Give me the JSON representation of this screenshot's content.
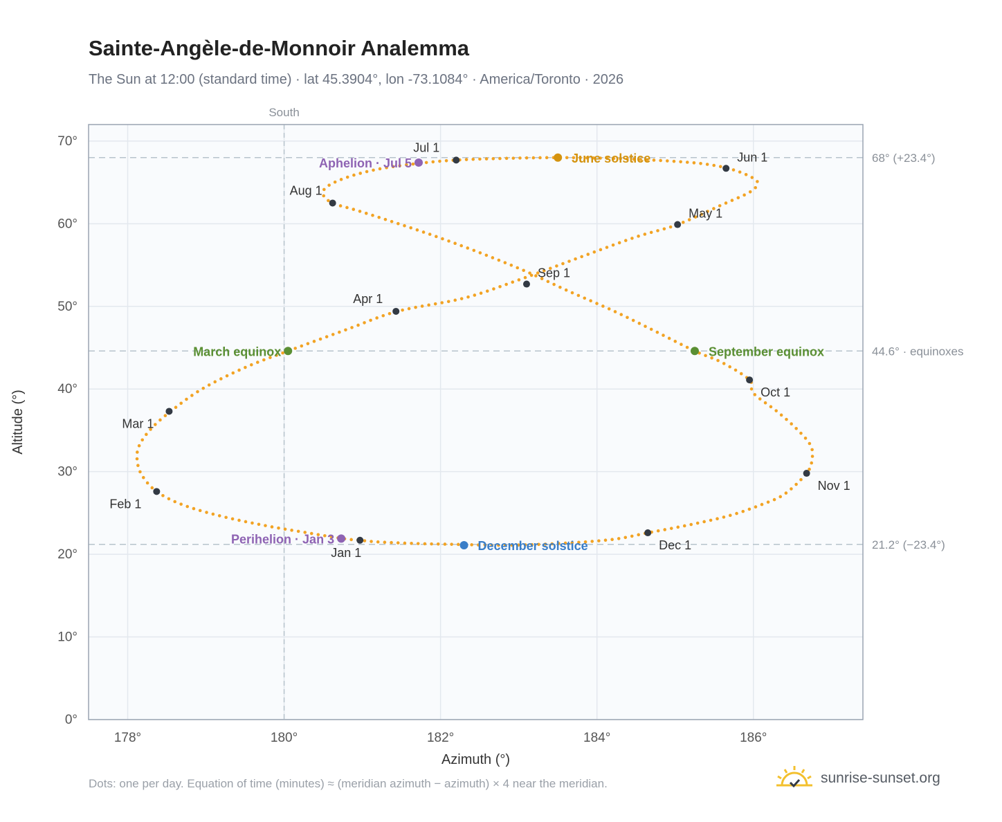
{
  "title": "Sainte-Angèle-de-Monnoir Analemma",
  "subtitle": "The Sun at 12:00 (standard time) · lat 45.3904°, lon -73.1084° · America/Toronto · 2026",
  "footnote": "Dots: one per day. Equation of time (minutes) ≈ (meridian azimuth − azimuth) × 4 near the meridian.",
  "brand": {
    "name": "sunrise-sunset.org",
    "logo_icon": "sun-check-icon"
  },
  "chart_data": {
    "type": "scatter",
    "xlabel": "Azimuth (°)",
    "ylabel": "Altitude (°)",
    "xlim": [
      177.5,
      187.4
    ],
    "ylim": [
      0,
      72
    ],
    "xticks": [
      {
        "value": 178,
        "label": "178°"
      },
      {
        "value": 180,
        "label": "180°"
      },
      {
        "value": 182,
        "label": "182°"
      },
      {
        "value": 184,
        "label": "184°"
      },
      {
        "value": 186,
        "label": "186°"
      }
    ],
    "yticks": [
      {
        "value": 0,
        "label": "0°"
      },
      {
        "value": 10,
        "label": "10°"
      },
      {
        "value": 20,
        "label": "20°"
      },
      {
        "value": 30,
        "label": "30°"
      },
      {
        "value": 40,
        "label": "40°"
      },
      {
        "value": 50,
        "label": "50°"
      },
      {
        "value": 60,
        "label": "60°"
      },
      {
        "value": 70,
        "label": "70°"
      }
    ],
    "grid": true,
    "meridian": {
      "azimuth": 180,
      "label": "South"
    },
    "reference_lines": [
      {
        "altitude": 68.0,
        "label": "68° (+23.4°)"
      },
      {
        "altitude": 44.6,
        "label": "44.6° · equinoxes"
      },
      {
        "altitude": 21.2,
        "label": "21.2° (−23.4°)"
      }
    ],
    "curve_color": "#f2a324",
    "curve": [
      [
        181.2,
        21.5
      ],
      [
        181.7,
        21.3
      ],
      [
        182.2,
        21.2
      ],
      [
        182.8,
        21.1
      ],
      [
        183.5,
        21.3
      ],
      [
        184.2,
        21.8
      ],
      [
        184.65,
        22.6
      ],
      [
        185.2,
        23.6
      ],
      [
        185.7,
        24.7
      ],
      [
        186.1,
        26.0
      ],
      [
        186.4,
        27.3
      ],
      [
        186.68,
        29.8
      ],
      [
        186.75,
        31.5
      ],
      [
        186.73,
        33.2
      ],
      [
        186.55,
        35.2
      ],
      [
        186.3,
        37.3
      ],
      [
        186.0,
        39.5
      ],
      [
        185.95,
        41.1
      ],
      [
        185.6,
        43.2
      ],
      [
        185.25,
        44.6
      ],
      [
        184.7,
        47.2
      ],
      [
        184.2,
        49.5
      ],
      [
        183.6,
        52.0
      ],
      [
        183.1,
        54.2
      ],
      [
        182.5,
        56.5
      ],
      [
        181.9,
        58.6
      ],
      [
        181.3,
        60.5
      ],
      [
        180.9,
        61.7
      ],
      [
        180.62,
        62.5
      ],
      [
        180.5,
        63.5
      ],
      [
        180.55,
        64.5
      ],
      [
        180.8,
        65.6
      ],
      [
        181.2,
        66.6
      ],
      [
        181.72,
        67.3
      ],
      [
        182.2,
        67.7
      ],
      [
        182.8,
        67.9
      ],
      [
        183.5,
        68.0
      ],
      [
        184.2,
        67.9
      ],
      [
        184.9,
        67.6
      ],
      [
        185.4,
        67.2
      ],
      [
        185.75,
        66.5
      ],
      [
        186.0,
        65.5
      ],
      [
        186.05,
        64.8
      ],
      [
        185.95,
        63.8
      ],
      [
        185.6,
        62.3
      ],
      [
        185.03,
        59.9
      ],
      [
        184.5,
        58.4
      ],
      [
        183.8,
        56.0
      ],
      [
        183.0,
        53.2
      ],
      [
        182.3,
        51.0
      ],
      [
        181.45,
        49.4
      ],
      [
        180.8,
        47.2
      ],
      [
        180.05,
        44.6
      ],
      [
        179.5,
        42.6
      ],
      [
        178.95,
        40.0
      ],
      [
        178.55,
        37.3
      ],
      [
        178.3,
        35.2
      ],
      [
        178.15,
        33.2
      ],
      [
        178.12,
        31.5
      ],
      [
        178.18,
        29.6
      ],
      [
        178.37,
        27.6
      ],
      [
        178.7,
        26.0
      ],
      [
        179.2,
        24.6
      ],
      [
        179.8,
        23.4
      ],
      [
        180.3,
        22.6
      ],
      [
        180.75,
        21.9
      ],
      [
        180.97,
        21.7
      ],
      [
        181.2,
        21.5
      ]
    ],
    "month_markers": [
      {
        "label": "Jan 1",
        "azimuth": 180.97,
        "altitude": 21.7,
        "anchor": "below"
      },
      {
        "label": "Feb 1",
        "azimuth": 178.37,
        "altitude": 27.6,
        "anchor": "below-left"
      },
      {
        "label": "Mar 1",
        "azimuth": 178.53,
        "altitude": 37.3,
        "anchor": "below-left"
      },
      {
        "label": "Apr 1",
        "azimuth": 181.43,
        "altitude": 49.4,
        "anchor": "above-left"
      },
      {
        "label": "May 1",
        "azimuth": 185.03,
        "altitude": 59.9,
        "anchor": "above-right"
      },
      {
        "label": "Jun 1",
        "azimuth": 185.65,
        "altitude": 66.7,
        "anchor": "above-right"
      },
      {
        "label": "Jul 1",
        "azimuth": 182.2,
        "altitude": 67.7,
        "anchor": "above-left"
      },
      {
        "label": "Aug 1",
        "azimuth": 180.62,
        "altitude": 62.5,
        "anchor": "above-left"
      },
      {
        "label": "Sep 1",
        "azimuth": 183.1,
        "altitude": 52.7,
        "anchor": "above-right"
      },
      {
        "label": "Oct 1",
        "azimuth": 185.95,
        "altitude": 41.1,
        "anchor": "below-right"
      },
      {
        "label": "Nov 1",
        "azimuth": 186.68,
        "altitude": 29.8,
        "anchor": "below-right"
      },
      {
        "label": "Dec 1",
        "azimuth": 184.65,
        "altitude": 22.6,
        "anchor": "below-right"
      }
    ],
    "events": [
      {
        "label": "June solstice",
        "azimuth": 183.5,
        "altitude": 68.0,
        "color": "#d4930f",
        "side": "right"
      },
      {
        "label": "Aphelion · Jul 5",
        "azimuth": 181.72,
        "altitude": 67.4,
        "color": "#8e63b3",
        "side": "left"
      },
      {
        "label": "March equinox",
        "azimuth": 180.05,
        "altitude": 44.6,
        "color": "#5a8f33",
        "side": "left"
      },
      {
        "label": "September equinox",
        "azimuth": 185.25,
        "altitude": 44.6,
        "color": "#5a8f33",
        "side": "right"
      },
      {
        "label": "Perihelion · Jan 3",
        "azimuth": 180.73,
        "altitude": 21.9,
        "color": "#8e63b3",
        "side": "left"
      },
      {
        "label": "December solstice",
        "azimuth": 182.3,
        "altitude": 21.1,
        "color": "#3a7ec8",
        "side": "right"
      }
    ]
  }
}
